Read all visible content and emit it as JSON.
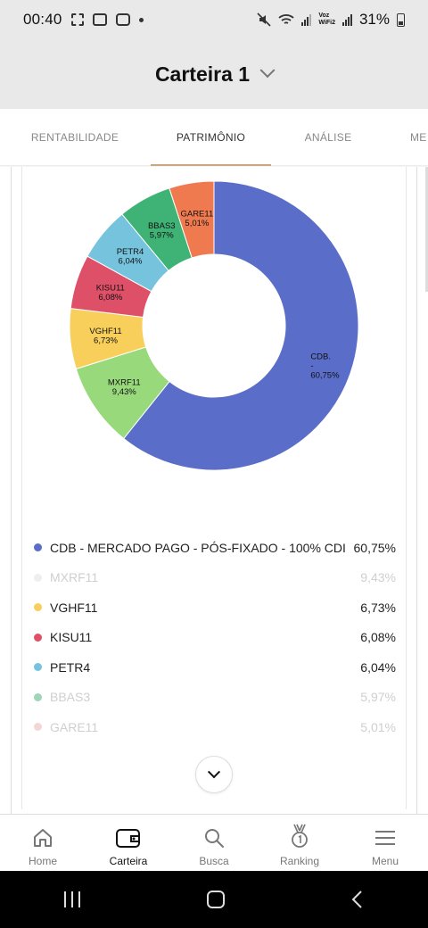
{
  "status": {
    "time": "00:40",
    "voz": "Voz",
    "wifi2": "WiFi2",
    "battery": "31%"
  },
  "header": {
    "title": "Carteira 1"
  },
  "tabs": [
    {
      "label": "RENTABILIDADE"
    },
    {
      "label": "PATRIMÔNIO",
      "active": true
    },
    {
      "label": "ANÁLISE"
    },
    {
      "label": "ME"
    }
  ],
  "chart_data": {
    "type": "pie",
    "donut": true,
    "categories": [
      "CDB - MERCADO PAGO - PÓS-FIXADO - 100% CDI",
      "MXRF11",
      "VGHF11",
      "KISU11",
      "PETR4",
      "BBAS3",
      "GARE11"
    ],
    "values": [
      60.75,
      9.43,
      6.73,
      6.08,
      6.04,
      5.97,
      5.01
    ],
    "labels": [
      {
        "name": "CDB.",
        "extra": "-",
        "pct": "60,75%"
      },
      {
        "name": "MXRF11",
        "pct": "9,43%"
      },
      {
        "name": "VGHF11",
        "pct": "6,73%"
      },
      {
        "name": "KISU11",
        "pct": "6,08%"
      },
      {
        "name": "PETR4",
        "pct": "6,04%"
      },
      {
        "name": "BBAS3",
        "pct": "5,97%"
      },
      {
        "name": "GARE11",
        "pct": "5,01%"
      }
    ],
    "colors": [
      "#5a6dc8",
      "#98d97b",
      "#f7cf5a",
      "#de5068",
      "#76c3dd",
      "#3eb375",
      "#f07a4f"
    ]
  },
  "legend": [
    {
      "name": "CDB - MERCADO PAGO - PÓS-FIXADO - 100% CDI",
      "value": "60,75%",
      "faded": false
    },
    {
      "name": "MXRF11",
      "value": "9,43%",
      "faded": true
    },
    {
      "name": "VGHF11",
      "value": "6,73%",
      "faded": false
    },
    {
      "name": "KISU11",
      "value": "6,08%",
      "faded": false
    },
    {
      "name": "PETR4",
      "value": "6,04%",
      "faded": false
    },
    {
      "name": "BBAS3",
      "value": "5,97%",
      "faded": true
    },
    {
      "name": "GARE11",
      "value": "5,01%",
      "faded": true
    }
  ],
  "legend_faded_colors": [
    "#5a6dc8",
    "#eeeeee",
    "#f7cf5a",
    "#de5068",
    "#76c3dd",
    "#9fd6b8",
    "#f5d6d6"
  ],
  "bottom_nav": [
    {
      "label": "Home",
      "icon": "home-icon"
    },
    {
      "label": "Carteira",
      "icon": "wallet-icon",
      "active": true
    },
    {
      "label": "Busca",
      "icon": "search-icon"
    },
    {
      "label": "Ranking",
      "icon": "medal-icon"
    },
    {
      "label": "Menu",
      "icon": "menu-icon"
    }
  ]
}
